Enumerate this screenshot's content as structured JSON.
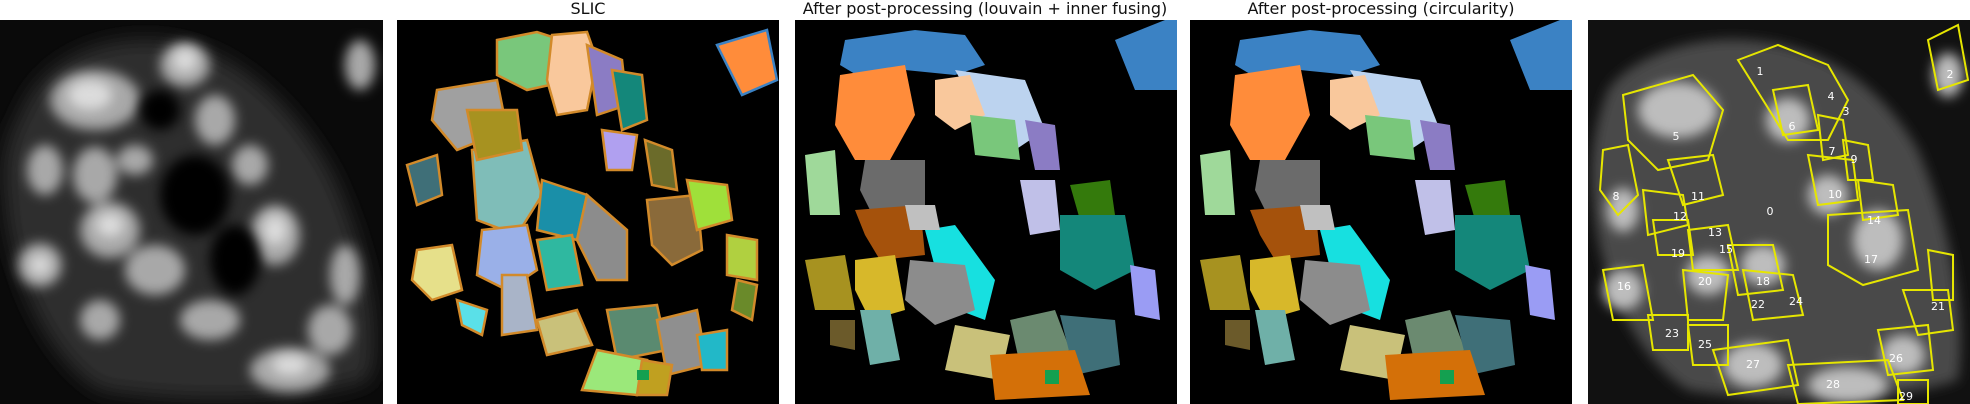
{
  "panels": [
    {
      "id": "raw",
      "title": ""
    },
    {
      "id": "slic",
      "title": "SLIC"
    },
    {
      "id": "louvain",
      "title": "After post-processing (louvain + inner fusing)"
    },
    {
      "id": "circ",
      "title": "After post-processing (circularity)"
    },
    {
      "id": "overlay",
      "title": ""
    }
  ],
  "overlay_labels": [
    "0",
    "1",
    "2",
    "3",
    "4",
    "5",
    "6",
    "7",
    "8",
    "9",
    "10",
    "11",
    "12",
    "13",
    "14",
    "15",
    "16",
    "17",
    "18",
    "19",
    "20",
    "21",
    "22",
    "23",
    "24",
    "25",
    "26",
    "27",
    "28",
    "29"
  ],
  "colors": {
    "background": "#000000",
    "contour": "#e6e600",
    "segment_palette": [
      "#3b82c4",
      "#ff8c3a",
      "#bcd3ef",
      "#f9c89c",
      "#79c77b",
      "#8b7cc4",
      "#9fd99a",
      "#6b6b6b",
      "#a5520c",
      "#d7b82a",
      "#17e0e0",
      "#14877a",
      "#347a0c",
      "#9a9cf4",
      "#8c8c8c",
      "#a79220",
      "#c9c17a",
      "#3f6f78",
      "#d47008",
      "#8a6a3a",
      "#c0c0c0",
      "#5aa0a8",
      "#14a050"
    ]
  }
}
